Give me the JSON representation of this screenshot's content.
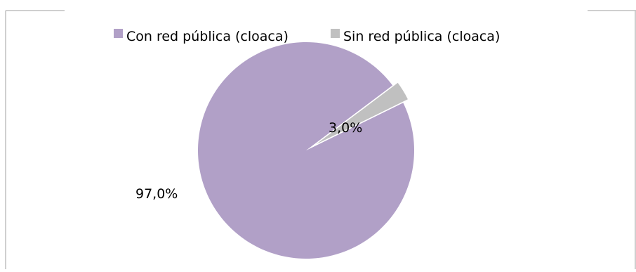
{
  "chart_data": {
    "type": "pie",
    "title": "",
    "legend_position": "top",
    "slices": [
      {
        "label": "Con red pública (cloaca)",
        "value": 97.0,
        "value_label": "97,0%",
        "color": "#b1a0c7"
      },
      {
        "label": "Sin red pública (cloaca)",
        "value": 3.0,
        "value_label": "3,0%",
        "color": "#c0c0c0"
      }
    ],
    "frame_color": "#bfbfbf"
  }
}
